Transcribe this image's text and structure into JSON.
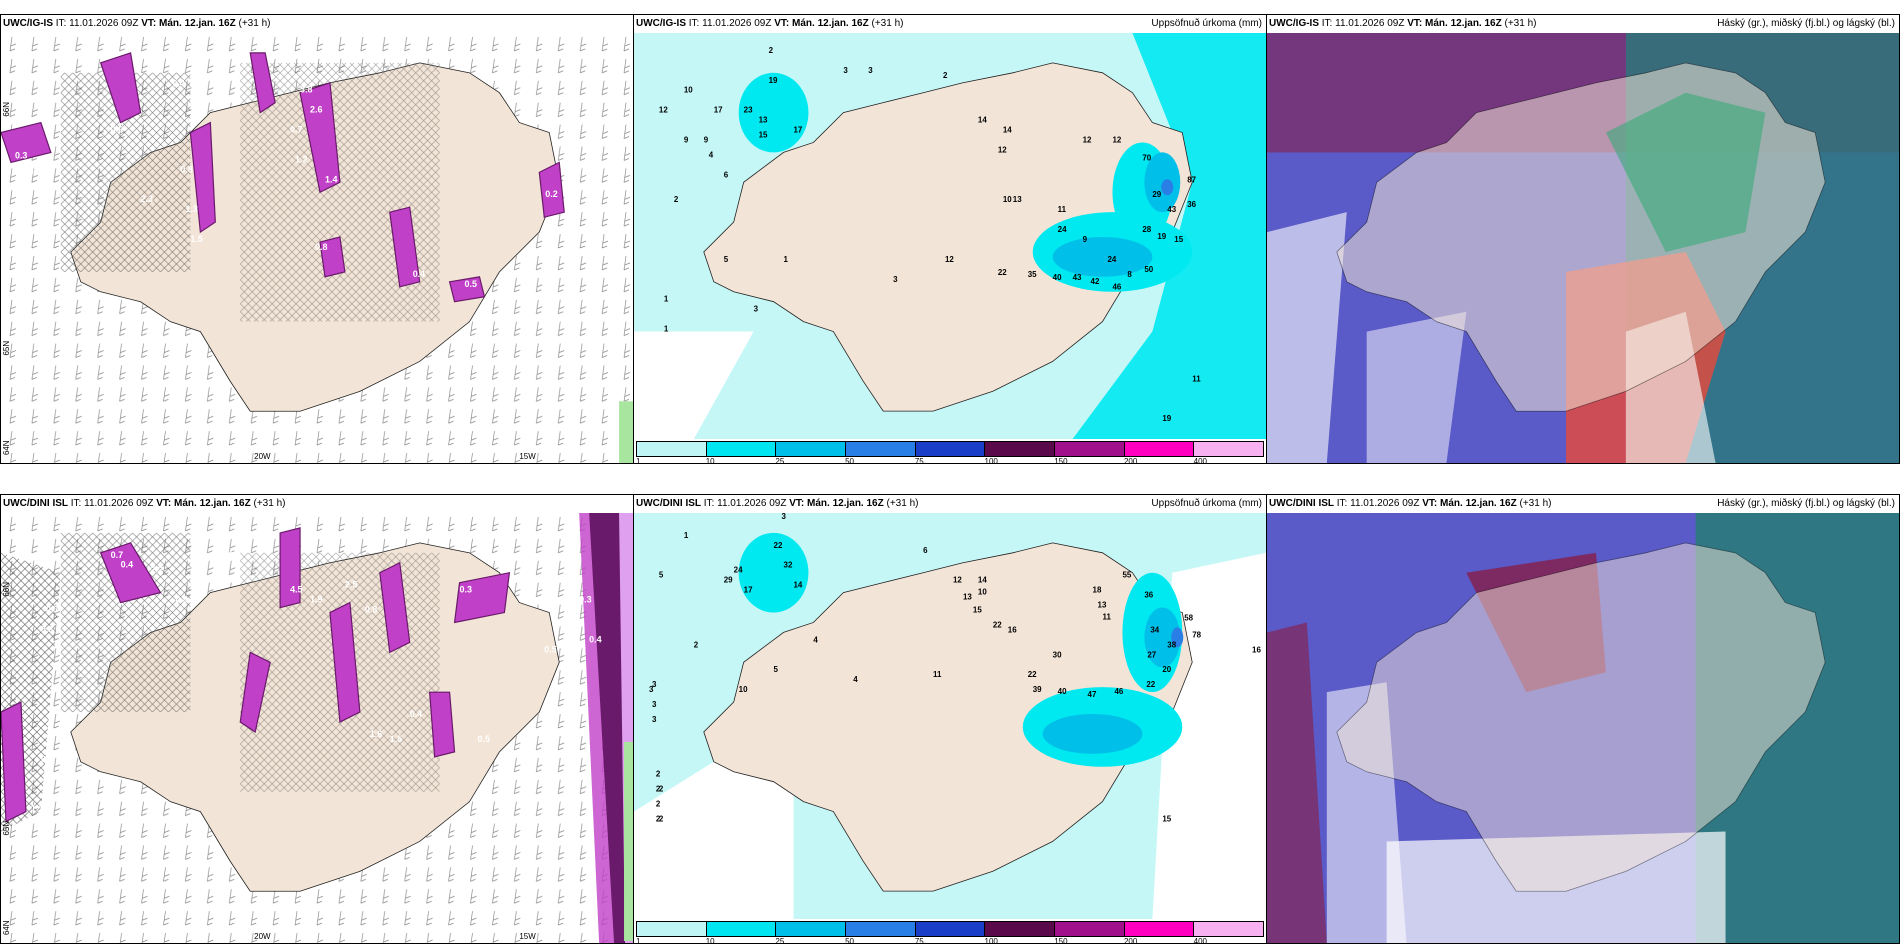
{
  "panels": [
    {
      "id": "p1",
      "model": "UWC/IG-IS",
      "it_label": "IT:",
      "it": "11.01.2026 09Z",
      "vt_label": "VT:",
      "vt": "Mán. 12.jan. 16Z",
      "lead": "(+31 h)",
      "right_title": "",
      "kind": "precip-type",
      "axis": {
        "lon1": "20W",
        "lon2": "15W",
        "lat1": "66N",
        "lat2": "65N",
        "lat3": "64N"
      },
      "values": [
        "0.3",
        "0.3",
        "0.5",
        "0.6",
        "1.3",
        "0.7",
        "0.4",
        "1.2",
        "2.6",
        "1.4",
        "3.8",
        "2.3",
        "1.5",
        "0.8",
        "0.5",
        "0.4",
        "0.2",
        "0.8"
      ]
    },
    {
      "id": "p2",
      "model": "UWC/IG-IS",
      "it_label": "IT:",
      "it": "11.01.2026 09Z",
      "vt_label": "VT:",
      "vt": "Mán. 12.jan. 16Z",
      "lead": "(+31 h)",
      "right_title": "Uppsöfnuð úrkoma (mm)",
      "kind": "accum",
      "values": [
        "2",
        "1",
        "12",
        "10",
        "9",
        "19",
        "17",
        "23",
        "13",
        "15",
        "17",
        "9",
        "4",
        "6",
        "2",
        "3",
        "3",
        "2",
        "1",
        "14",
        "12",
        "14",
        "13",
        "12",
        "12",
        "10",
        "87",
        "70",
        "29",
        "43",
        "36",
        "24",
        "28",
        "19",
        "15",
        "50",
        "22",
        "35",
        "40",
        "43",
        "42",
        "46",
        "24",
        "9",
        "11",
        "8",
        "5",
        "1",
        "12",
        "3",
        "3",
        "19",
        "11"
      ]
    },
    {
      "id": "p3",
      "model": "UWC/IG-IS",
      "it_label": "IT:",
      "it": "11.01.2026 09Z",
      "vt_label": "VT:",
      "vt": "Mán. 12.jan. 16Z",
      "lead": "(+31 h)",
      "right_title": "Háský (gr.), miðský (fj.bl.) og lágský (bl.)",
      "kind": "cloud"
    },
    {
      "id": "p4",
      "model": "UWC/DINI ISL",
      "it_label": "IT:",
      "it": "11.01.2026 09Z",
      "vt_label": "VT:",
      "vt": "Mán. 12.jan. 16Z",
      "lead": "(+31 h)",
      "right_title": "",
      "kind": "precip-type",
      "axis": {
        "lon1": "20W",
        "lon2": "15W",
        "lat1": "66N",
        "lat2": "65N",
        "lat3": "64N"
      },
      "values": [
        "0.3",
        "0.7",
        "0.4",
        "2.2",
        "0.8",
        "0.3",
        "0.2",
        "0.3",
        "0.8",
        "4.5",
        "1.9",
        "2.5",
        "0.3",
        "0.5",
        "0.4",
        "0.4",
        "1.6",
        "1.5",
        "0.5",
        "1.1",
        "0.9"
      ]
    },
    {
      "id": "p5",
      "model": "UWC/DINI ISL",
      "it_label": "IT:",
      "it": "11.01.2026 09Z",
      "vt_label": "VT:",
      "vt": "Mán. 12.jan. 16Z",
      "lead": "(+31 h)",
      "right_title": "Uppsöfnuð úrkoma (mm)",
      "kind": "accum",
      "values": [
        "3",
        "1",
        "5",
        "22",
        "24",
        "32",
        "29",
        "17",
        "14",
        "2",
        "4",
        "6",
        "4",
        "3",
        "2",
        "2",
        "12",
        "14",
        "10",
        "13",
        "15",
        "22",
        "16",
        "18",
        "55",
        "13",
        "11",
        "36",
        "34",
        "58",
        "78",
        "38",
        "27",
        "30",
        "20",
        "22",
        "39",
        "40",
        "47",
        "46",
        "22",
        "16",
        "15",
        "2",
        "2",
        "2",
        "2",
        "3",
        "3",
        "3",
        "11",
        "10",
        "5"
      ]
    },
    {
      "id": "p6",
      "model": "UWC/DINI ISL",
      "it_label": "IT:",
      "it": "11.01.2026 09Z",
      "vt_label": "VT:",
      "vt": "Mán. 12.jan. 16Z",
      "lead": "(+31 h)",
      "right_title": "Háský (gr.), miðský (fj.bl.) og lágský (bl.)",
      "kind": "cloud"
    }
  ],
  "colorbar": {
    "labels": [
      "1",
      "10",
      "25",
      "50",
      "75",
      "100",
      "150",
      "200",
      "400"
    ],
    "colors": [
      "#bff5f5",
      "#00e5f0",
      "#00bfe8",
      "#2a7fe6",
      "#1a3ec8",
      "#5a0a4a",
      "#a0108a",
      "#ff00c0",
      "#f7b0f0"
    ]
  },
  "colors": {
    "land": "#f2e4d6",
    "sea_light": "#c6f7f7",
    "sea_cyan": "#00e8f0",
    "precip_magenta": "#c040c8",
    "precip_dark": "#6a1a6a",
    "cloud_blue": "#5a5ac8",
    "cloud_red": "#8a1a40",
    "cloud_teal": "#2a7a7a"
  }
}
